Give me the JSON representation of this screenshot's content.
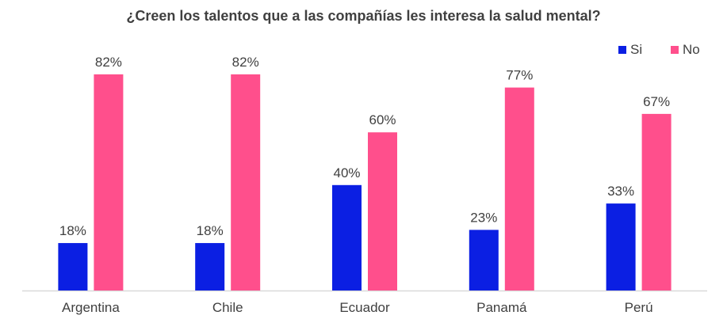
{
  "chart_data": {
    "type": "bar",
    "title": "¿Creen los talentos que a las compañías les interesa la salud mental?",
    "categories": [
      "Argentina",
      "Chile",
      "Ecuador",
      "Panamá",
      "Perú"
    ],
    "series": [
      {
        "name": "Si",
        "color": "#0B1FE3",
        "values": [
          18,
          18,
          40,
          23,
          33
        ],
        "labels": [
          "18%",
          "18%",
          "40%",
          "23%",
          "33%"
        ]
      },
      {
        "name": "No",
        "color": "#FF4F8C",
        "values": [
          82,
          82,
          60,
          77,
          67
        ],
        "labels": [
          "82%",
          "82%",
          "60%",
          "77%",
          "67%"
        ]
      }
    ],
    "ylim": [
      0,
      100
    ],
    "grid": false,
    "legend_position": "top-right"
  }
}
